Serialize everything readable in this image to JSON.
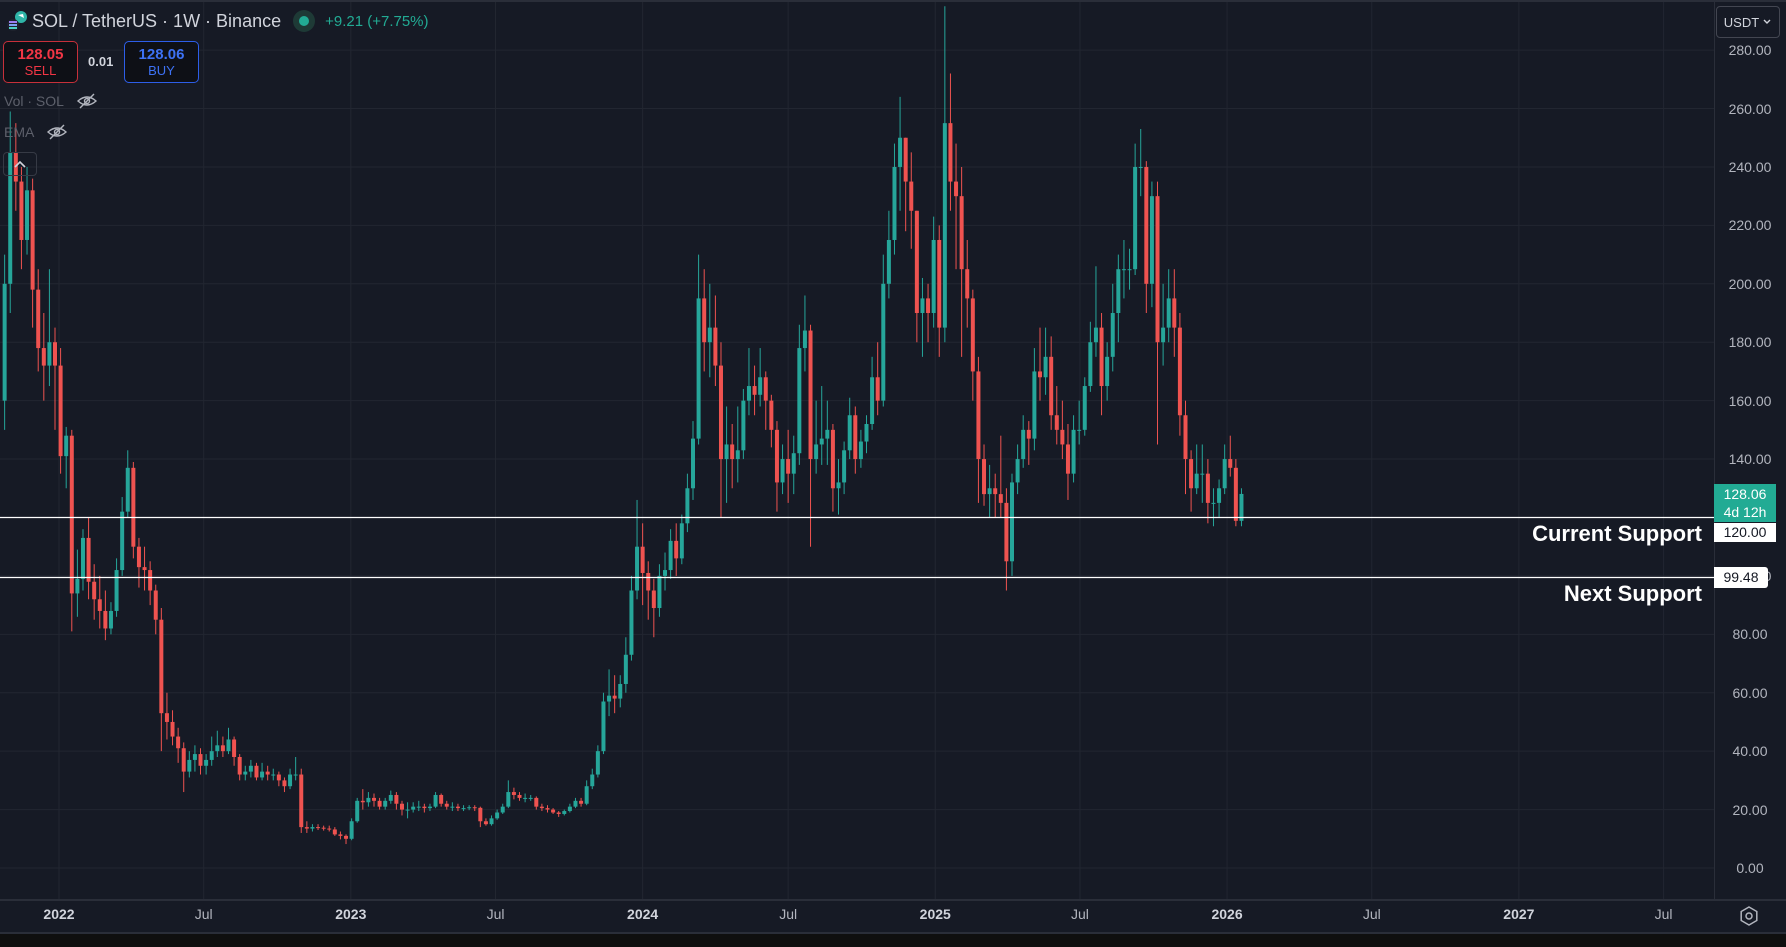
{
  "header": {
    "symbol_title": "SOL / TetherUS · 1W · Binance",
    "change": "+9.21 (+7.75%)",
    "market_status": "open"
  },
  "trade": {
    "sell_price": "128.05",
    "sell_label": "SELL",
    "spread": "0.01",
    "buy_price": "128.06",
    "buy_label": "BUY"
  },
  "indicators": [
    {
      "label": "Vol · SOL",
      "icon": "eye-off-icon"
    },
    {
      "label": "EMA",
      "icon": "eye-off-icon"
    }
  ],
  "currency_selector": "USDT",
  "price_labels": {
    "last_price": "128.06",
    "countdown": "4d 12h",
    "current_support": "120.00",
    "next_support": "99.48"
  },
  "annotations": {
    "current_support": "Current Support",
    "next_support": "Next Support"
  },
  "colors": {
    "background": "#161a25",
    "up": "#26a69a",
    "down": "#ef5350",
    "grid": "#222631",
    "support_line": "#ffffff"
  },
  "chart_data": {
    "type": "candlestick",
    "interval": "1W",
    "first_week": "2021-10-25",
    "first_open": 160,
    "close": [
      200,
      245,
      235,
      215,
      232,
      198,
      178,
      172,
      180,
      172,
      141,
      148,
      94,
      99,
      113,
      98,
      92,
      88,
      82,
      88,
      102,
      122,
      137,
      110,
      103,
      102,
      95,
      85,
      53,
      50,
      45,
      41,
      33,
      37,
      39,
      35,
      37,
      40,
      42,
      40,
      44,
      38,
      32,
      33,
      35,
      31,
      33,
      32,
      32,
      30,
      28,
      32,
      32,
      14,
      13.5,
      14,
      13.8,
      13.5,
      13.2,
      11.5,
      11,
      10,
      16,
      23,
      22.5,
      24,
      23,
      21,
      23,
      25,
      22,
      20,
      20,
      21,
      21,
      20.5,
      21,
      25,
      22,
      21,
      21,
      20.5,
      20.5,
      20.8,
      20.6,
      16,
      15,
      17,
      19,
      21,
      26,
      25,
      24,
      24,
      24,
      21,
      20.5,
      20,
      19,
      18.5,
      19.5,
      21,
      23,
      22,
      28,
      32,
      40,
      57,
      59,
      58,
      63,
      73,
      95,
      110,
      101,
      95,
      89,
      100,
      102,
      112,
      106,
      118,
      130,
      147,
      195,
      180,
      185,
      172,
      140,
      145,
      140,
      143,
      160,
      165,
      162,
      168,
      160,
      150,
      132,
      140,
      135,
      142,
      178,
      184,
      140,
      145,
      147,
      150,
      130,
      132,
      143,
      155,
      140,
      146,
      152,
      168,
      160,
      200,
      215,
      240,
      250,
      235,
      225,
      190,
      195,
      190,
      215,
      185,
      255,
      235,
      230,
      205,
      195,
      170,
      140,
      128,
      130,
      128,
      125,
      105,
      132,
      140,
      150,
      147,
      170,
      168,
      175,
      155,
      150,
      145,
      135,
      150,
      150,
      165,
      180,
      185,
      165,
      175,
      190,
      205,
      205,
      205,
      240,
      240,
      200,
      230,
      180,
      185,
      195,
      185,
      155,
      140,
      130,
      135,
      135,
      125,
      125,
      130,
      140,
      137,
      118.85,
      128.06
    ],
    "high": [
      210,
      259,
      255,
      240,
      240,
      236,
      205,
      190,
      205,
      185,
      178,
      151,
      150,
      109,
      116,
      120,
      104,
      100,
      95,
      91,
      106,
      127,
      143,
      139,
      113,
      110,
      105,
      97,
      89,
      60,
      54,
      48,
      43,
      40,
      42,
      41,
      39,
      45,
      47,
      45,
      48,
      45,
      39,
      35,
      37,
      36,
      36,
      35,
      34,
      33,
      31,
      34,
      38,
      34,
      16,
      15,
      15,
      14.5,
      14.5,
      14,
      12.5,
      11.5,
      17,
      24,
      27,
      26,
      25.5,
      24,
      24,
      26.5,
      26,
      23,
      22.5,
      22.5,
      23,
      22,
      22,
      26,
      25.5,
      23,
      22.5,
      22,
      21.5,
      21.5,
      21.5,
      21,
      17,
      18,
      20,
      22,
      30,
      27.5,
      26,
      25.5,
      25,
      24.5,
      22,
      21.5,
      20.5,
      19.5,
      20,
      22,
      24,
      24,
      30,
      34,
      42,
      60,
      68,
      66,
      66,
      79,
      100,
      126,
      118,
      105,
      99,
      104,
      108,
      116,
      118,
      121,
      135,
      153,
      210,
      205,
      200,
      196,
      180,
      158,
      152,
      158,
      164,
      178,
      172,
      178,
      170,
      162,
      153,
      145,
      150,
      148,
      186,
      196,
      186,
      160,
      165,
      160,
      152,
      140,
      146,
      161,
      158,
      150,
      155,
      175,
      180,
      210,
      225,
      248,
      264,
      250,
      245,
      225,
      202,
      200,
      223,
      220,
      295,
      272,
      248,
      240,
      215,
      198,
      175,
      145,
      138,
      135,
      148,
      130,
      135,
      145,
      155,
      153,
      178,
      185,
      185,
      182,
      165,
      160,
      152,
      155,
      160,
      168,
      187,
      206,
      190,
      180,
      200,
      210,
      215,
      212,
      248,
      253,
      242,
      235,
      235,
      200,
      205,
      205,
      190,
      160,
      143,
      145,
      145,
      140,
      130,
      133,
      145,
      148,
      140,
      130
    ],
    "low": [
      150,
      190,
      225,
      205,
      210,
      185,
      170,
      160,
      165,
      150,
      135,
      130,
      81,
      86,
      95,
      92,
      85,
      82,
      78,
      80,
      86,
      100,
      120,
      106,
      96,
      95,
      90,
      80,
      40,
      44,
      42,
      36,
      26,
      31,
      33,
      32,
      32,
      35,
      38,
      38,
      39,
      35,
      30,
      30,
      31,
      30,
      30,
      30,
      30,
      28,
      26,
      27,
      30,
      12,
      12,
      12.5,
      13,
      12.8,
      12.5,
      11,
      9.8,
      8.2,
      9.5,
      15.5,
      20,
      21,
      21,
      20,
      20,
      22,
      20,
      18,
      17,
      19,
      19.5,
      19,
      19.5,
      20.5,
      21,
      20,
      19.5,
      19.5,
      19.5,
      19.8,
      19.5,
      14,
      14.5,
      14.5,
      16.5,
      18.5,
      20.5,
      23.5,
      23,
      22.5,
      23,
      20,
      19.5,
      19,
      18.5,
      17.5,
      18,
      19,
      20.5,
      21,
      21.5,
      27,
      31,
      39,
      52,
      53,
      55,
      60,
      71,
      92,
      90,
      85,
      79,
      86,
      95,
      99,
      100,
      104,
      115,
      126,
      145,
      170,
      168,
      165,
      120,
      125,
      130,
      132,
      140,
      155,
      155,
      158,
      150,
      144,
      122,
      128,
      125,
      128,
      138,
      170,
      110,
      135,
      138,
      138,
      122,
      121,
      128,
      140,
      135,
      137,
      142,
      150,
      155,
      158,
      195,
      210,
      225,
      218,
      212,
      180,
      175,
      180,
      185,
      175,
      180,
      225,
      205,
      175,
      185,
      160,
      125,
      124,
      120,
      120,
      120,
      95,
      100,
      128,
      137,
      138,
      143,
      160,
      162,
      150,
      145,
      140,
      126,
      132,
      145,
      148,
      163,
      175,
      155,
      160,
      170,
      180,
      195,
      198,
      203,
      230,
      190,
      192,
      145,
      172,
      180,
      175,
      148,
      128,
      122,
      128,
      125,
      118,
      117,
      120,
      128,
      134,
      117,
      117
    ],
    "y_axis": {
      "range": [
        0,
        280
      ],
      "tick_labels": [
        "280.00",
        "260.00",
        "240.00",
        "220.00",
        "200.00",
        "180.00",
        "160.00",
        "140.00",
        "120.00",
        "100.00",
        "80.00",
        "60.00",
        "40.00",
        "20.00",
        "0.00"
      ]
    },
    "x_axis": {
      "ticks": [
        {
          "label": "2022",
          "date": "2022-01-01",
          "major": true
        },
        {
          "label": "Jul",
          "date": "2022-07-01",
          "major": false
        },
        {
          "label": "2023",
          "date": "2023-01-01",
          "major": true
        },
        {
          "label": "Jul",
          "date": "2023-07-01",
          "major": false
        },
        {
          "label": "2024",
          "date": "2024-01-01",
          "major": true
        },
        {
          "label": "Jul",
          "date": "2024-07-01",
          "major": false
        },
        {
          "label": "2025",
          "date": "2025-01-01",
          "major": true
        },
        {
          "label": "Jul",
          "date": "2025-07-01",
          "major": false
        },
        {
          "label": "2026",
          "date": "2026-01-01",
          "major": true
        },
        {
          "label": "Jul",
          "date": "2026-07-01",
          "major": false
        },
        {
          "label": "2027",
          "date": "2027-01-01",
          "major": true
        },
        {
          "label": "Jul",
          "date": "2027-07-01",
          "major": false
        }
      ]
    },
    "horizontal_lines": [
      {
        "price": 120.0,
        "label": "Current Support"
      },
      {
        "price": 99.48,
        "label": "Next Support"
      }
    ],
    "grid": true
  }
}
